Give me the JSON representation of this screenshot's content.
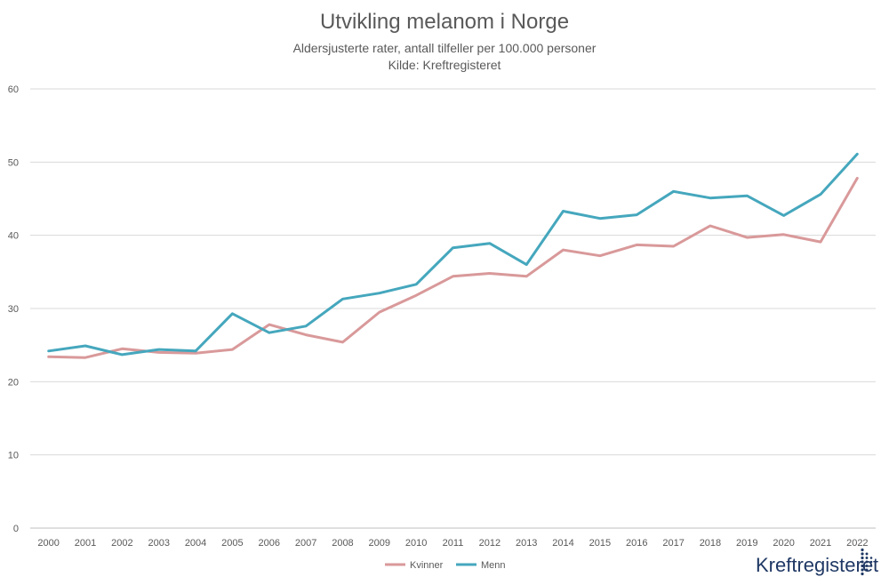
{
  "chart_data": {
    "type": "line",
    "title": "Utvikling melanom i Norge",
    "subtitle_lines": [
      "Aldersjusterte rater, antall tilfeller per 100.000 personer",
      "Kilde: Kreftregisteret"
    ],
    "categories": [
      "2000",
      "2001",
      "2002",
      "2003",
      "2004",
      "2005",
      "2006",
      "2007",
      "2008",
      "2009",
      "2010",
      "2011",
      "2012",
      "2013",
      "2014",
      "2015",
      "2016",
      "2017",
      "2018",
      "2019",
      "2020",
      "2021",
      "2022"
    ],
    "y_ticks": [
      "0",
      "10",
      "20",
      "30",
      "40",
      "50",
      "60"
    ],
    "ylim": [
      0,
      60
    ],
    "grid": true,
    "legend_position": "bottom",
    "series": [
      {
        "name": "Kvinner",
        "color": "#d9999a",
        "values": [
          23.4,
          23.3,
          24.5,
          24.0,
          23.9,
          24.4,
          27.8,
          26.4,
          25.4,
          29.5,
          31.8,
          34.4,
          34.8,
          34.4,
          38.0,
          37.2,
          38.7,
          38.5,
          41.3,
          39.7,
          40.1,
          39.1,
          47.8
        ]
      },
      {
        "name": "Menn",
        "color": "#45a7bd",
        "values": [
          24.2,
          24.9,
          23.7,
          24.4,
          24.2,
          29.3,
          26.7,
          27.6,
          31.3,
          32.1,
          33.3,
          38.3,
          38.9,
          36.0,
          43.3,
          42.3,
          42.8,
          46.0,
          45.1,
          45.4,
          42.7,
          45.6,
          51.1
        ]
      }
    ]
  },
  "logo": {
    "text": "Kreftregisteret",
    "color": "#1f3864"
  }
}
